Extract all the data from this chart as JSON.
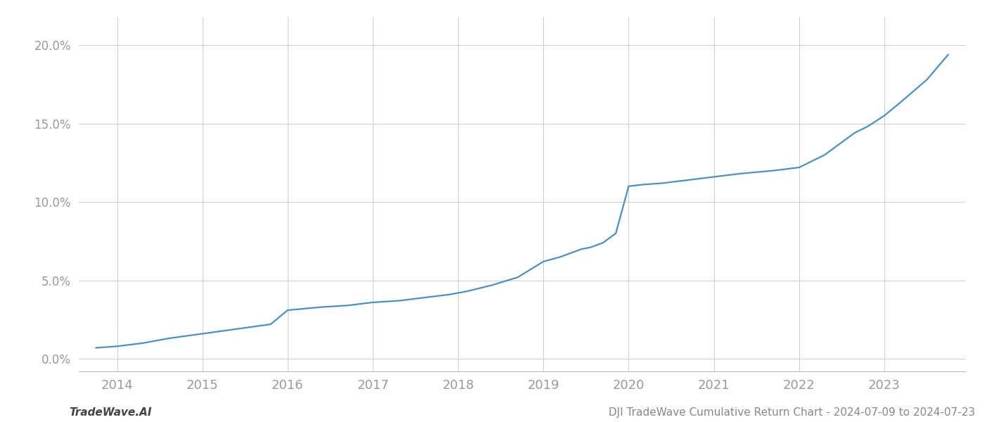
{
  "x_years": [
    2013.75,
    2014.0,
    2014.3,
    2014.6,
    2015.0,
    2015.4,
    2015.8,
    2016.0,
    2016.4,
    2016.7,
    2017.0,
    2017.3,
    2017.6,
    2017.9,
    2018.1,
    2018.4,
    2018.7,
    2019.0,
    2019.2,
    2019.45,
    2019.55,
    2019.7,
    2019.85,
    2020.0,
    2020.15,
    2020.4,
    2020.7,
    2021.0,
    2021.3,
    2021.5,
    2021.7,
    2022.0,
    2022.3,
    2022.5,
    2022.65,
    2022.8,
    2023.0,
    2023.2,
    2023.5,
    2023.75
  ],
  "y_values": [
    0.007,
    0.008,
    0.01,
    0.013,
    0.016,
    0.019,
    0.022,
    0.031,
    0.033,
    0.034,
    0.036,
    0.037,
    0.039,
    0.041,
    0.043,
    0.047,
    0.052,
    0.062,
    0.065,
    0.07,
    0.071,
    0.074,
    0.08,
    0.11,
    0.111,
    0.112,
    0.114,
    0.116,
    0.118,
    0.119,
    0.12,
    0.122,
    0.13,
    0.138,
    0.144,
    0.148,
    0.155,
    0.164,
    0.178,
    0.194
  ],
  "line_color": "#4a90c4",
  "line_width": 1.6,
  "bg_color": "#ffffff",
  "grid_color": "#cccccc",
  "yticks": [
    0.0,
    0.05,
    0.1,
    0.15,
    0.2
  ],
  "ytick_labels": [
    "0.0%",
    "5.0%",
    "10.0%",
    "15.0%",
    "20.0%"
  ],
  "xticks": [
    2014,
    2015,
    2016,
    2017,
    2018,
    2019,
    2020,
    2021,
    2022,
    2023
  ],
  "xlim": [
    2013.55,
    2023.95
  ],
  "ylim": [
    -0.008,
    0.218
  ],
  "bottom_left_text": "TradeWave.AI",
  "bottom_right_text": "DJI TradeWave Cumulative Return Chart - 2024-07-09 to 2024-07-23",
  "text_color": "#888888",
  "tick_color": "#999999",
  "spine_color": "#bbbbbb"
}
